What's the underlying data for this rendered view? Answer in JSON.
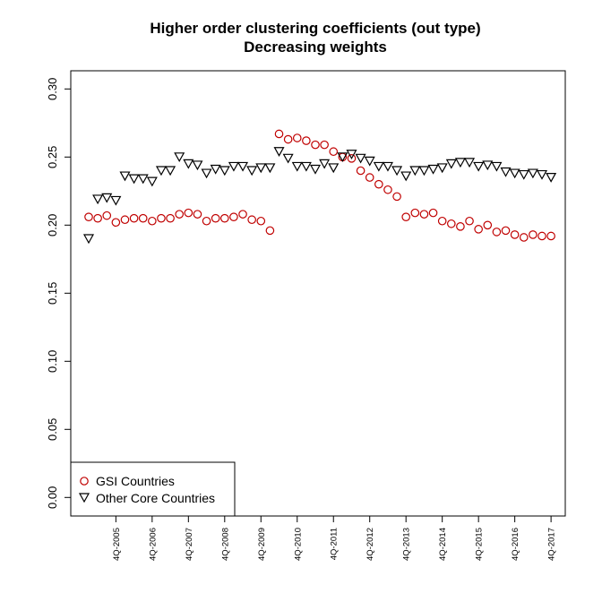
{
  "chart_data": {
    "type": "scatter",
    "title": "Higher order clustering coefficients (out type)",
    "subtitle": "Decreasing weights",
    "xlabel": "",
    "ylabel": "",
    "ylim": [
      0,
      0.31
    ],
    "yticks": [
      "0.00",
      "0.05",
      "0.10",
      "0.15",
      "0.20",
      "0.25",
      "0.30"
    ],
    "ytick_values": [
      0,
      0.05,
      0.1,
      0.15,
      0.2,
      0.25,
      0.3
    ],
    "xtick_labels": [
      "4Q-2005",
      "4Q-2006",
      "4Q-2007",
      "4Q-2008",
      "4Q-2009",
      "4Q-2010",
      "4Q-2011",
      "4Q-2012",
      "4Q-2013",
      "4Q-2014",
      "4Q-2015",
      "4Q-2016",
      "4Q-2017"
    ],
    "xtick_index": [
      4,
      8,
      12,
      16,
      20,
      24,
      28,
      32,
      36,
      40,
      44,
      48,
      52
    ],
    "x_count": 52,
    "legend_position": "bottom-left",
    "series": [
      {
        "name": "GSI Countries",
        "marker": "circle",
        "color": "#c00000",
        "values": [
          0.206,
          0.205,
          0.207,
          0.202,
          0.204,
          0.205,
          0.205,
          0.203,
          0.205,
          0.205,
          0.208,
          0.209,
          0.208,
          0.203,
          0.205,
          0.205,
          0.206,
          0.208,
          0.204,
          0.203,
          0.196,
          0.267,
          0.263,
          0.264,
          0.262,
          0.259,
          0.259,
          0.254,
          0.25,
          0.249,
          0.24,
          0.235,
          0.23,
          0.226,
          0.221,
          0.206,
          0.209,
          0.208,
          0.209,
          0.203,
          0.201,
          0.199,
          0.203,
          0.197,
          0.2,
          0.195,
          0.196,
          0.193,
          0.191,
          0.193,
          0.192,
          0.192
        ]
      },
      {
        "name": "Other Core Countries",
        "marker": "triangle-down",
        "color": "#000000",
        "values": [
          0.19,
          0.219,
          0.22,
          0.218,
          0.236,
          0.234,
          0.234,
          0.232,
          0.24,
          0.24,
          0.25,
          0.245,
          0.244,
          0.238,
          0.241,
          0.24,
          0.243,
          0.243,
          0.24,
          0.242,
          0.242,
          0.254,
          0.249,
          0.243,
          0.243,
          0.241,
          0.245,
          0.242,
          0.25,
          0.252,
          0.249,
          0.247,
          0.243,
          0.243,
          0.24,
          0.236,
          0.24,
          0.24,
          0.241,
          0.242,
          0.245,
          0.246,
          0.246,
          0.243,
          0.244,
          0.243,
          0.239,
          0.238,
          0.237,
          0.238,
          0.237,
          0.235
        ]
      }
    ]
  }
}
